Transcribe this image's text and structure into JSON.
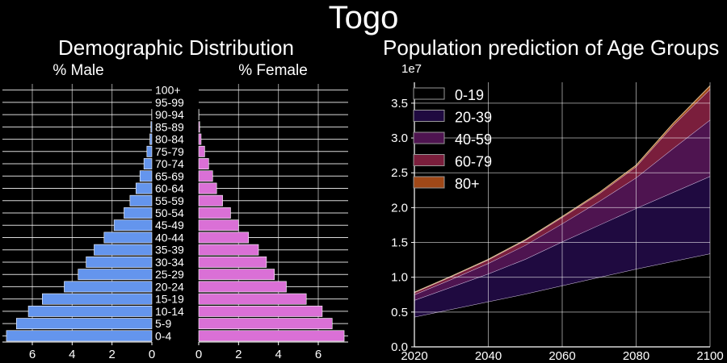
{
  "page_title": "Togo",
  "chart_data": [
    {
      "type": "bar",
      "title": "Demographic Distribution",
      "left_label": "% Male",
      "right_label": "% Female",
      "categories": [
        "0-4",
        "5-9",
        "10-14",
        "15-19",
        "20-24",
        "25-29",
        "30-34",
        "35-39",
        "40-44",
        "45-49",
        "50-54",
        "55-59",
        "60-64",
        "65-69",
        "70-74",
        "75-79",
        "80-84",
        "85-89",
        "90-94",
        "95-99",
        "100+"
      ],
      "male": [
        7.3,
        6.8,
        6.2,
        5.5,
        4.4,
        3.7,
        3.3,
        2.9,
        2.4,
        1.9,
        1.4,
        1.1,
        0.8,
        0.6,
        0.4,
        0.25,
        0.1,
        0.05,
        0.01,
        0.0,
        0.0
      ],
      "female": [
        7.3,
        6.7,
        6.2,
        5.4,
        4.4,
        3.8,
        3.4,
        3.0,
        2.5,
        2.0,
        1.6,
        1.2,
        0.9,
        0.7,
        0.5,
        0.3,
        0.12,
        0.05,
        0.01,
        0.0,
        0.0
      ],
      "xlim": [
        0,
        7.5
      ],
      "xticks": [
        "0",
        "2",
        "4",
        "6"
      ],
      "colors": {
        "male": "#6495ed",
        "female": "#da70d6"
      }
    },
    {
      "type": "area",
      "title": "Population prediction of Age Groups",
      "offset_label": "1e7",
      "x": [
        2020,
        2030,
        2040,
        2050,
        2060,
        2070,
        2080,
        2090,
        2100
      ],
      "series": [
        {
          "name": "0-19",
          "values": [
            0.43,
            0.54,
            0.65,
            0.76,
            0.88,
            1.0,
            1.12,
            1.23,
            1.34
          ],
          "color": "#000000"
        },
        {
          "name": "20-39",
          "values": [
            0.24,
            0.32,
            0.4,
            0.5,
            0.63,
            0.75,
            0.87,
            0.99,
            1.11
          ],
          "color": "#1f0a40"
        },
        {
          "name": "40-59",
          "values": [
            0.08,
            0.11,
            0.15,
            0.2,
            0.26,
            0.34,
            0.44,
            0.63,
            0.81
          ],
          "color": "#4e1450"
        },
        {
          "name": "60-79",
          "values": [
            0.03,
            0.04,
            0.05,
            0.07,
            0.09,
            0.11,
            0.16,
            0.33,
            0.44
          ],
          "color": "#7a1e3c"
        },
        {
          "name": "80+",
          "values": [
            0.005,
            0.005,
            0.007,
            0.009,
            0.012,
            0.016,
            0.02,
            0.03,
            0.05
          ],
          "color": "#a04818"
        }
      ],
      "xlim": [
        2020,
        2100
      ],
      "ylim": [
        0,
        3.8
      ],
      "xticks": [
        "2020",
        "2040",
        "2060",
        "2080",
        "2100"
      ],
      "yticks": [
        "0.0",
        "0.5",
        "1.0",
        "1.5",
        "2.0",
        "2.5",
        "3.0",
        "3.5"
      ],
      "legend_position": "top-left"
    }
  ]
}
